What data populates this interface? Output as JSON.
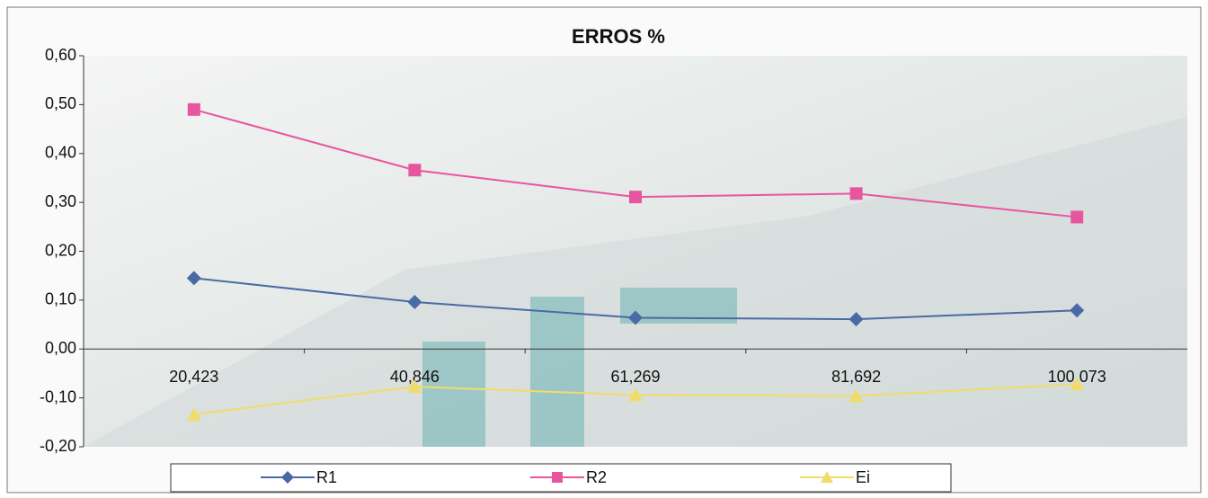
{
  "chart_data": {
    "type": "line",
    "title": "ERROS %",
    "categories": [
      "20,423",
      "40,846",
      "61,269",
      "81,692",
      "100,073"
    ],
    "series": [
      {
        "name": "R1",
        "color": "#4a6aa5",
        "marker": "diamond",
        "values": [
          0.145,
          0.096,
          0.064,
          0.061,
          0.079
        ]
      },
      {
        "name": "R2",
        "color": "#e8559f",
        "marker": "square",
        "values": [
          0.49,
          0.366,
          0.311,
          0.318,
          0.27
        ]
      },
      {
        "name": "Ei",
        "color": "#f0dc6a",
        "marker": "triangle",
        "values": [
          -0.134,
          -0.077,
          -0.094,
          -0.096,
          -0.072
        ]
      }
    ],
    "ylim": [
      -0.2,
      0.6
    ],
    "yticks": [
      {
        "value": -0.2,
        "label": "-0,20"
      },
      {
        "value": -0.1,
        "label": "-0,10"
      },
      {
        "value": 0,
        "label": "0,00"
      },
      {
        "value": 0.1,
        "label": "0,10"
      },
      {
        "value": 0.2,
        "label": "0,20"
      },
      {
        "value": 0.3,
        "label": "0,30"
      },
      {
        "value": 0.4,
        "label": "0,40"
      },
      {
        "value": 0.5,
        "label": "0,50"
      },
      {
        "value": 0.6,
        "label": "0,60"
      }
    ],
    "grid": false
  }
}
